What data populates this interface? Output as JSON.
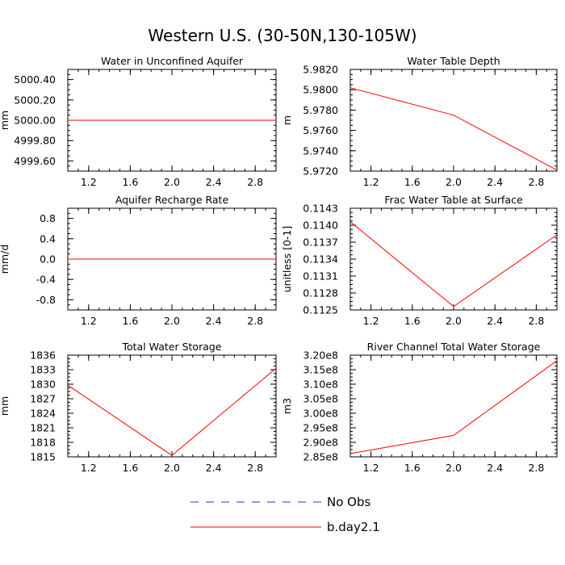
{
  "figure": {
    "title": "Western U.S. (30-50N,130-105W)"
  },
  "legend": {
    "entries": [
      {
        "label": "No Obs",
        "color": "#3333cc",
        "dash": true
      },
      {
        "label": "b.day2.1",
        "color": "#ff0000",
        "dash": false
      }
    ]
  },
  "chart_data": [
    {
      "type": "line",
      "title": "Water in Unconfined Aquifer",
      "ylabel": "mm",
      "xlim": [
        1.0,
        3.0
      ],
      "ylim": [
        4999.5,
        5000.5
      ],
      "xticks": [
        1.2,
        1.6,
        2.0,
        2.4,
        2.8
      ],
      "xticklabels": [
        "1.2",
        "1.6",
        "2.0",
        "2.4",
        "2.8"
      ],
      "yticks": [
        4999.6,
        4999.8,
        5000.0,
        5000.2,
        5000.4
      ],
      "yticklabels": [
        "4999.60",
        "4999.80",
        "5000.00",
        "5000.20",
        "5000.40"
      ],
      "series": [
        {
          "name": "b.day2.1",
          "color": "#ff0000",
          "x": [
            1.0,
            2.0,
            3.0
          ],
          "y": [
            5000.0,
            5000.0,
            5000.0
          ]
        }
      ]
    },
    {
      "type": "line",
      "title": "Water Table Depth",
      "ylabel": "m",
      "xlim": [
        1.0,
        3.0
      ],
      "ylim": [
        5.972,
        5.982
      ],
      "xticks": [
        1.2,
        1.6,
        2.0,
        2.4,
        2.8
      ],
      "xticklabels": [
        "1.2",
        "1.6",
        "2.0",
        "2.4",
        "2.8"
      ],
      "yticks": [
        5.972,
        5.974,
        5.976,
        5.978,
        5.98,
        5.982
      ],
      "yticklabels": [
        "5.9720",
        "5.9740",
        "5.9760",
        "5.9780",
        "5.9800",
        "5.9820"
      ],
      "series": [
        {
          "name": "b.day2.1",
          "color": "#ff0000",
          "x": [
            1.0,
            2.0,
            3.0
          ],
          "y": [
            5.9802,
            5.9775,
            5.9721
          ]
        }
      ]
    },
    {
      "type": "line",
      "title": "Aquifer Recharge Rate",
      "ylabel": "mm/d",
      "xlim": [
        1.0,
        3.0
      ],
      "ylim": [
        -1.0,
        1.0
      ],
      "xticks": [
        1.2,
        1.6,
        2.0,
        2.4,
        2.8
      ],
      "xticklabels": [
        "1.2",
        "1.6",
        "2.0",
        "2.4",
        "2.8"
      ],
      "yticks": [
        -0.8,
        -0.4,
        0.0,
        0.4,
        0.8
      ],
      "yticklabels": [
        "-0.8",
        "-0.4",
        "0.0",
        "0.4",
        "0.8"
      ],
      "series": [
        {
          "name": "b.day2.1",
          "color": "#ff0000",
          "x": [
            1.0,
            2.0,
            3.0
          ],
          "y": [
            0.0,
            0.0,
            0.0
          ]
        }
      ]
    },
    {
      "type": "line",
      "title": "Frac Water Table at Surface",
      "ylabel": "unitless [0-1]",
      "xlim": [
        1.0,
        3.0
      ],
      "ylim": [
        0.1125,
        0.1143
      ],
      "xticks": [
        1.2,
        1.6,
        2.0,
        2.4,
        2.8
      ],
      "xticklabels": [
        "1.2",
        "1.6",
        "2.0",
        "2.4",
        "2.8"
      ],
      "yticks": [
        0.1125,
        0.1128,
        0.1131,
        0.1134,
        0.1137,
        0.114,
        0.1143
      ],
      "yticklabels": [
        "0.1125",
        "0.1128",
        "0.1131",
        "0.1134",
        "0.1137",
        "0.1140",
        "0.1143"
      ],
      "series": [
        {
          "name": "b.day2.1",
          "color": "#ff0000",
          "x": [
            1.0,
            2.0,
            3.0
          ],
          "y": [
            0.11406,
            0.11256,
            0.11383
          ]
        }
      ]
    },
    {
      "type": "line",
      "title": "Total Water Storage",
      "ylabel": "mm",
      "xlim": [
        1.0,
        3.0
      ],
      "ylim": [
        1815,
        1836
      ],
      "xticks": [
        1.2,
        1.6,
        2.0,
        2.4,
        2.8
      ],
      "xticklabels": [
        "1.2",
        "1.6",
        "2.0",
        "2.4",
        "2.8"
      ],
      "yticks": [
        1815,
        1818,
        1821,
        1824,
        1827,
        1830,
        1833,
        1836
      ],
      "yticklabels": [
        "1815",
        "1818",
        "1821",
        "1824",
        "1827",
        "1830",
        "1833",
        "1836"
      ],
      "series": [
        {
          "name": "b.day2.1",
          "color": "#ff0000",
          "x": [
            1.0,
            2.0,
            3.0
          ],
          "y": [
            1829.8,
            1815.3,
            1833.3
          ]
        }
      ]
    },
    {
      "type": "line",
      "title": "River Channel Total Water Storage",
      "ylabel": "m3",
      "xlim": [
        1.0,
        3.0
      ],
      "ylim": [
        285000000.0,
        320000000.0
      ],
      "xticks": [
        1.2,
        1.6,
        2.0,
        2.4,
        2.8
      ],
      "xticklabels": [
        "1.2",
        "1.6",
        "2.0",
        "2.4",
        "2.8"
      ],
      "yticks": [
        285000000.0,
        290000000.0,
        295000000.0,
        300000000.0,
        305000000.0,
        310000000.0,
        315000000.0,
        320000000.0
      ],
      "yticklabels": [
        "2.85e8",
        "2.90e8",
        "2.95e8",
        "3.00e8",
        "3.05e8",
        "3.10e8",
        "3.15e8",
        "3.20e8"
      ],
      "series": [
        {
          "name": "b.day2.1",
          "color": "#ff0000",
          "x": [
            1.0,
            2.0,
            3.0
          ],
          "y": [
            286100000.0,
            292400000.0,
            318100000.0
          ]
        }
      ]
    }
  ]
}
